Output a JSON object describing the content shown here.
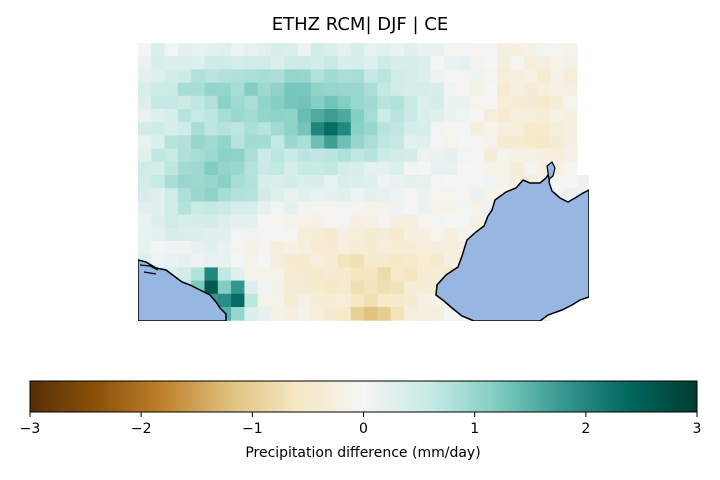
{
  "title": "ETHZ RCM| DJF | CE",
  "colorbar": {
    "label": "Precipitation difference (mm/day)",
    "min": -3,
    "max": 3,
    "ticks": [
      "−3",
      "−2",
      "−1",
      "0",
      "1",
      "2",
      "3"
    ],
    "colormap": "BrBG",
    "stops": [
      "#543005",
      "#8c510a",
      "#bf812d",
      "#dfc27d",
      "#f6e8c3",
      "#f5f5f5",
      "#c7eae5",
      "#80cdc1",
      "#35978f",
      "#01665e",
      "#003c30"
    ]
  },
  "colors": {
    "sea": "#97b6e1",
    "land_missing": "#ffffff",
    "coastline": "#000000"
  }
}
